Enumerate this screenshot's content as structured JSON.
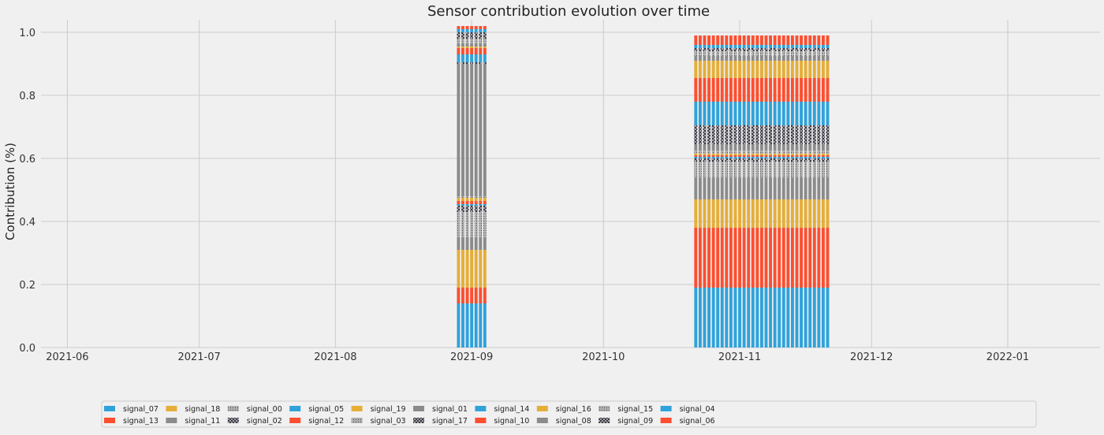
{
  "chart_data": {
    "type": "bar",
    "stacked": true,
    "title": "Sensor contribution evolution over time",
    "xlabel": "",
    "ylabel": "Contribution (%)",
    "xlim": [
      "2021-05-26",
      "2022-01-22"
    ],
    "ylim": [
      0,
      1.0
    ],
    "x_ticks": [
      "2021-06",
      "2021-07",
      "2021-08",
      "2021-09",
      "2021-10",
      "2021-11",
      "2021-12",
      "2022-01"
    ],
    "y_ticks": [
      "0.0",
      "0.2",
      "0.4",
      "0.6",
      "0.8",
      "1.0"
    ],
    "grid": true,
    "legend_position": "bottom-center",
    "bar_groups": [
      {
        "start": "2021-08-29",
        "end": "2021-09-04",
        "segments": [
          {
            "series": "signal_07",
            "value": 0.14
          },
          {
            "series": "signal_13",
            "value": 0.05
          },
          {
            "series": "signal_18",
            "value": 0.12
          },
          {
            "series": "signal_11",
            "value": 0.04
          },
          {
            "series": "signal_00",
            "value": 0.08
          },
          {
            "series": "signal_02",
            "value": 0.02
          },
          {
            "series": "signal_05",
            "value": 0.005
          },
          {
            "series": "signal_12",
            "value": 0.01
          },
          {
            "series": "signal_19",
            "value": 0.01
          },
          {
            "series": "signal_03",
            "value": 0.005
          },
          {
            "series": "signal_01",
            "value": 0.42
          },
          {
            "series": "signal_17",
            "value": 0.005
          },
          {
            "series": "signal_14",
            "value": 0.025
          },
          {
            "series": "signal_10",
            "value": 0.02
          },
          {
            "series": "signal_16",
            "value": 0.005
          },
          {
            "series": "signal_08",
            "value": 0.01
          },
          {
            "series": "signal_15",
            "value": 0.015
          },
          {
            "series": "signal_09",
            "value": 0.02
          },
          {
            "series": "signal_04",
            "value": 0.01
          },
          {
            "series": "signal_06",
            "value": 0.01
          }
        ]
      },
      {
        "start": "2021-10-22",
        "end": "2021-11-21",
        "segments": [
          {
            "series": "signal_07",
            "value": 0.19
          },
          {
            "series": "signal_13",
            "value": 0.19
          },
          {
            "series": "signal_18",
            "value": 0.09
          },
          {
            "series": "signal_11",
            "value": 0.07
          },
          {
            "series": "signal_00",
            "value": 0.05
          },
          {
            "series": "signal_02",
            "value": 0.01
          },
          {
            "series": "signal_05",
            "value": 0.005
          },
          {
            "series": "signal_12",
            "value": 0.005
          },
          {
            "series": "signal_19",
            "value": 0.005
          },
          {
            "series": "signal_03",
            "value": 0.01
          },
          {
            "series": "signal_01",
            "value": 0.02
          },
          {
            "series": "signal_17",
            "value": 0.06
          },
          {
            "series": "signal_14",
            "value": 0.075
          },
          {
            "series": "signal_10",
            "value": 0.075
          },
          {
            "series": "signal_16",
            "value": 0.055
          },
          {
            "series": "signal_08",
            "value": 0.015
          },
          {
            "series": "signal_15",
            "value": 0.015
          },
          {
            "series": "signal_09",
            "value": 0.01
          },
          {
            "series": "signal_04",
            "value": 0.01
          },
          {
            "series": "signal_06",
            "value": 0.03
          }
        ]
      }
    ],
    "series": [
      {
        "name": "signal_07",
        "color": "#30a2da",
        "pattern": "solid"
      },
      {
        "name": "signal_13",
        "color": "#fc4f30",
        "pattern": "solid"
      },
      {
        "name": "signal_18",
        "color": "#e5ae38",
        "pattern": "solid"
      },
      {
        "name": "signal_11",
        "color": "#8b8b8b",
        "pattern": "solid"
      },
      {
        "name": "signal_00",
        "color": "#a0a0a0",
        "pattern": "dots"
      },
      {
        "name": "signal_02",
        "color": "#3f3f4a",
        "pattern": "crosshatch"
      },
      {
        "name": "signal_05",
        "color": "#30a2da",
        "pattern": "solid"
      },
      {
        "name": "signal_12",
        "color": "#fc4f30",
        "pattern": "solid"
      },
      {
        "name": "signal_19",
        "color": "#e5ae38",
        "pattern": "solid"
      },
      {
        "name": "signal_03",
        "color": "#a0a0a0",
        "pattern": "dots"
      },
      {
        "name": "signal_01",
        "color": "#8b8b8b",
        "pattern": "solid"
      },
      {
        "name": "signal_17",
        "color": "#3f3f4a",
        "pattern": "crosshatch"
      },
      {
        "name": "signal_14",
        "color": "#30a2da",
        "pattern": "solid"
      },
      {
        "name": "signal_10",
        "color": "#fc4f30",
        "pattern": "solid"
      },
      {
        "name": "signal_16",
        "color": "#e5ae38",
        "pattern": "solid"
      },
      {
        "name": "signal_08",
        "color": "#8b8b8b",
        "pattern": "solid"
      },
      {
        "name": "signal_15",
        "color": "#a0a0a0",
        "pattern": "dots"
      },
      {
        "name": "signal_09",
        "color": "#3f3f4a",
        "pattern": "crosshatch"
      },
      {
        "name": "signal_04",
        "color": "#30a2da",
        "pattern": "solid"
      },
      {
        "name": "signal_06",
        "color": "#fc4f30",
        "pattern": "solid"
      }
    ]
  }
}
